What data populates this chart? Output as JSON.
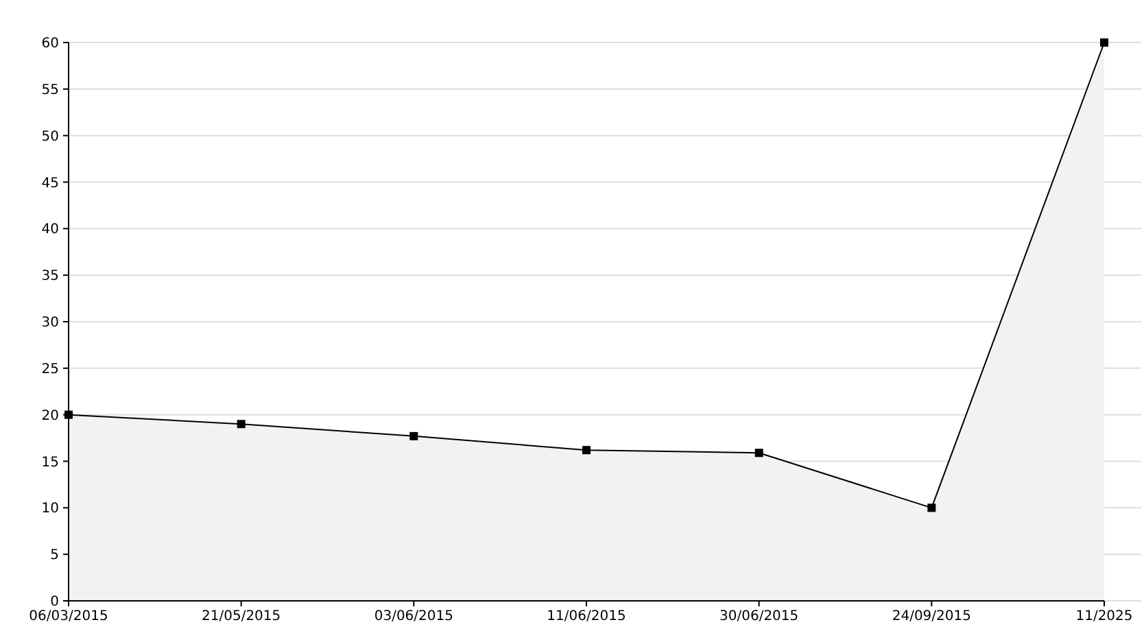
{
  "chart_data": {
    "type": "area",
    "categories": [
      "06/03/2015",
      "21/05/2015",
      "03/06/2015",
      "11/06/2015",
      "30/06/2015",
      "24/09/2015",
      "11/2025"
    ],
    "series": [
      {
        "color": "#000000",
        "values": [
          20,
          19,
          17.7,
          16.2,
          15.9,
          10,
          60
        ]
      }
    ],
    "ylim": [
      0,
      60
    ],
    "yticks": [
      0,
      5,
      10,
      15,
      20,
      25,
      30,
      35,
      40,
      45,
      50,
      55,
      60
    ],
    "grid": "y",
    "marker": "square",
    "line_style": "solid"
  }
}
